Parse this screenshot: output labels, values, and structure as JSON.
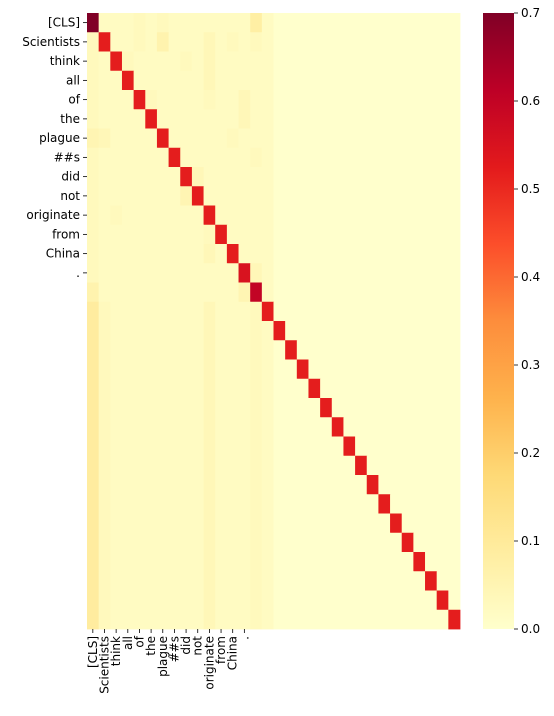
{
  "chart_data": {
    "type": "heatmap",
    "title": "",
    "xlabel": "",
    "ylabel": "",
    "n_rows": 32,
    "n_cols": 32,
    "tokens": [
      "[CLS]",
      "Scientists",
      "think",
      "all",
      "of",
      "the",
      "plague",
      "##s",
      "did",
      "not",
      "originate",
      "from",
      "China",
      "."
    ],
    "x_tick_labels": [
      "[CLS]",
      "Scientists",
      "think",
      "all",
      "of",
      "the",
      "plague",
      "##s",
      "did",
      "not",
      "originate",
      "from",
      "China",
      "."
    ],
    "y_tick_labels": [
      "[CLS]",
      "Scientists",
      "think",
      "all",
      "of",
      "the",
      "plague",
      "##s",
      "did",
      "not",
      "originate",
      "from",
      "China",
      "."
    ],
    "colorbar": {
      "vmin": 0.0,
      "vmax": 0.7,
      "ticks": [
        0.0,
        0.1,
        0.2,
        0.3,
        0.4,
        0.5,
        0.6,
        0.7
      ],
      "tick_labels": [
        "0.0",
        "0.1",
        "0.2",
        "0.3",
        "0.4",
        "0.5",
        "0.6",
        "0.7"
      ],
      "colormap": "YlOrRd",
      "stops": [
        "#ffffcc",
        "#ffeda0",
        "#fed976",
        "#feb24c",
        "#fd8d3c",
        "#fc4e2a",
        "#e31a1c",
        "#bd0026",
        "#800026"
      ]
    },
    "values": [
      [
        0.7,
        0.02,
        0.02,
        0.02,
        0.03,
        0.02,
        0.03,
        0.02,
        0.02,
        0.02,
        0.02,
        0.02,
        0.02,
        0.02,
        0.08,
        0.02,
        0.0,
        0.0,
        0.0,
        0.0,
        0.0,
        0.0,
        0.0,
        0.0,
        0.0,
        0.0,
        0.0,
        0.0,
        0.0,
        0.0,
        0.0,
        0.0
      ],
      [
        0.03,
        0.52,
        0.02,
        0.02,
        0.03,
        0.02,
        0.06,
        0.02,
        0.02,
        0.02,
        0.04,
        0.02,
        0.03,
        0.02,
        0.03,
        0.02,
        0.0,
        0.0,
        0.0,
        0.0,
        0.0,
        0.0,
        0.0,
        0.0,
        0.0,
        0.0,
        0.0,
        0.0,
        0.0,
        0.0,
        0.0,
        0.0
      ],
      [
        0.03,
        0.02,
        0.52,
        0.03,
        0.02,
        0.02,
        0.02,
        0.02,
        0.03,
        0.02,
        0.04,
        0.02,
        0.02,
        0.02,
        0.02,
        0.02,
        0.0,
        0.0,
        0.0,
        0.0,
        0.0,
        0.0,
        0.0,
        0.0,
        0.0,
        0.0,
        0.0,
        0.0,
        0.0,
        0.0,
        0.0,
        0.0
      ],
      [
        0.03,
        0.02,
        0.02,
        0.52,
        0.02,
        0.02,
        0.02,
        0.02,
        0.02,
        0.02,
        0.04,
        0.02,
        0.02,
        0.02,
        0.02,
        0.02,
        0.0,
        0.0,
        0.0,
        0.0,
        0.0,
        0.0,
        0.0,
        0.0,
        0.0,
        0.0,
        0.0,
        0.0,
        0.0,
        0.0,
        0.0,
        0.0
      ],
      [
        0.03,
        0.02,
        0.02,
        0.02,
        0.52,
        0.03,
        0.02,
        0.02,
        0.02,
        0.02,
        0.03,
        0.02,
        0.02,
        0.04,
        0.02,
        0.02,
        0.0,
        0.0,
        0.0,
        0.0,
        0.0,
        0.0,
        0.0,
        0.0,
        0.0,
        0.0,
        0.0,
        0.0,
        0.0,
        0.0,
        0.0,
        0.0
      ],
      [
        0.03,
        0.02,
        0.02,
        0.02,
        0.02,
        0.52,
        0.02,
        0.02,
        0.02,
        0.02,
        0.02,
        0.02,
        0.02,
        0.04,
        0.02,
        0.02,
        0.0,
        0.0,
        0.0,
        0.0,
        0.0,
        0.0,
        0.0,
        0.0,
        0.0,
        0.0,
        0.0,
        0.0,
        0.0,
        0.0,
        0.0,
        0.0
      ],
      [
        0.05,
        0.04,
        0.02,
        0.02,
        0.02,
        0.02,
        0.52,
        0.02,
        0.02,
        0.02,
        0.02,
        0.02,
        0.03,
        0.02,
        0.02,
        0.02,
        0.0,
        0.0,
        0.0,
        0.0,
        0.0,
        0.0,
        0.0,
        0.0,
        0.0,
        0.0,
        0.0,
        0.0,
        0.0,
        0.0,
        0.0,
        0.0
      ],
      [
        0.03,
        0.02,
        0.02,
        0.02,
        0.02,
        0.02,
        0.02,
        0.52,
        0.02,
        0.02,
        0.02,
        0.02,
        0.02,
        0.02,
        0.03,
        0.02,
        0.0,
        0.0,
        0.0,
        0.0,
        0.0,
        0.0,
        0.0,
        0.0,
        0.0,
        0.0,
        0.0,
        0.0,
        0.0,
        0.0,
        0.0,
        0.0
      ],
      [
        0.03,
        0.02,
        0.02,
        0.02,
        0.02,
        0.02,
        0.02,
        0.02,
        0.52,
        0.04,
        0.02,
        0.02,
        0.02,
        0.02,
        0.02,
        0.02,
        0.0,
        0.0,
        0.0,
        0.0,
        0.0,
        0.0,
        0.0,
        0.0,
        0.0,
        0.0,
        0.0,
        0.0,
        0.0,
        0.0,
        0.0,
        0.0
      ],
      [
        0.03,
        0.02,
        0.02,
        0.02,
        0.02,
        0.02,
        0.02,
        0.02,
        0.05,
        0.52,
        0.02,
        0.02,
        0.02,
        0.02,
        0.02,
        0.02,
        0.0,
        0.0,
        0.0,
        0.0,
        0.0,
        0.0,
        0.0,
        0.0,
        0.0,
        0.0,
        0.0,
        0.0,
        0.0,
        0.0,
        0.0,
        0.0
      ],
      [
        0.03,
        0.02,
        0.03,
        0.02,
        0.02,
        0.02,
        0.02,
        0.02,
        0.02,
        0.02,
        0.52,
        0.02,
        0.02,
        0.02,
        0.02,
        0.02,
        0.0,
        0.0,
        0.0,
        0.0,
        0.0,
        0.0,
        0.0,
        0.0,
        0.0,
        0.0,
        0.0,
        0.0,
        0.0,
        0.0,
        0.0,
        0.0
      ],
      [
        0.03,
        0.02,
        0.02,
        0.02,
        0.02,
        0.02,
        0.02,
        0.02,
        0.02,
        0.02,
        0.03,
        0.52,
        0.02,
        0.02,
        0.02,
        0.02,
        0.0,
        0.0,
        0.0,
        0.0,
        0.0,
        0.0,
        0.0,
        0.0,
        0.0,
        0.0,
        0.0,
        0.0,
        0.0,
        0.0,
        0.0,
        0.0
      ],
      [
        0.03,
        0.02,
        0.02,
        0.02,
        0.02,
        0.02,
        0.02,
        0.02,
        0.02,
        0.02,
        0.04,
        0.02,
        0.52,
        0.02,
        0.02,
        0.02,
        0.0,
        0.0,
        0.0,
        0.0,
        0.0,
        0.0,
        0.0,
        0.0,
        0.0,
        0.0,
        0.0,
        0.0,
        0.0,
        0.0,
        0.0,
        0.0
      ],
      [
        0.03,
        0.02,
        0.02,
        0.02,
        0.02,
        0.02,
        0.02,
        0.02,
        0.02,
        0.02,
        0.02,
        0.02,
        0.02,
        0.55,
        0.04,
        0.02,
        0.0,
        0.0,
        0.0,
        0.0,
        0.0,
        0.0,
        0.0,
        0.0,
        0.0,
        0.0,
        0.0,
        0.0,
        0.0,
        0.0,
        0.0,
        0.0
      ],
      [
        0.06,
        0.02,
        0.02,
        0.02,
        0.02,
        0.02,
        0.02,
        0.02,
        0.02,
        0.02,
        0.02,
        0.02,
        0.02,
        0.05,
        0.6,
        0.02,
        0.0,
        0.0,
        0.0,
        0.0,
        0.0,
        0.0,
        0.0,
        0.0,
        0.0,
        0.0,
        0.0,
        0.0,
        0.0,
        0.0,
        0.0,
        0.0
      ],
      [
        0.09,
        0.03,
        0.02,
        0.02,
        0.02,
        0.02,
        0.02,
        0.02,
        0.02,
        0.02,
        0.04,
        0.02,
        0.02,
        0.02,
        0.03,
        0.52,
        0.0,
        0.0,
        0.0,
        0.0,
        0.0,
        0.0,
        0.0,
        0.0,
        0.0,
        0.0,
        0.0,
        0.0,
        0.0,
        0.0,
        0.0,
        0.0
      ],
      [
        0.09,
        0.03,
        0.02,
        0.02,
        0.02,
        0.02,
        0.02,
        0.02,
        0.02,
        0.02,
        0.04,
        0.02,
        0.02,
        0.02,
        0.03,
        0.02,
        0.52,
        0.0,
        0.0,
        0.0,
        0.0,
        0.0,
        0.0,
        0.0,
        0.0,
        0.0,
        0.0,
        0.0,
        0.0,
        0.0,
        0.0,
        0.0
      ],
      [
        0.09,
        0.03,
        0.02,
        0.02,
        0.02,
        0.02,
        0.02,
        0.02,
        0.02,
        0.02,
        0.04,
        0.02,
        0.02,
        0.02,
        0.03,
        0.02,
        0.0,
        0.52,
        0.0,
        0.0,
        0.0,
        0.0,
        0.0,
        0.0,
        0.0,
        0.0,
        0.0,
        0.0,
        0.0,
        0.0,
        0.0,
        0.0
      ],
      [
        0.09,
        0.03,
        0.02,
        0.02,
        0.02,
        0.02,
        0.02,
        0.02,
        0.02,
        0.02,
        0.04,
        0.02,
        0.02,
        0.02,
        0.03,
        0.02,
        0.0,
        0.0,
        0.52,
        0.0,
        0.0,
        0.0,
        0.0,
        0.0,
        0.0,
        0.0,
        0.0,
        0.0,
        0.0,
        0.0,
        0.0,
        0.0
      ],
      [
        0.09,
        0.03,
        0.02,
        0.02,
        0.02,
        0.02,
        0.02,
        0.02,
        0.02,
        0.02,
        0.04,
        0.02,
        0.02,
        0.02,
        0.03,
        0.02,
        0.0,
        0.0,
        0.0,
        0.52,
        0.0,
        0.0,
        0.0,
        0.0,
        0.0,
        0.0,
        0.0,
        0.0,
        0.0,
        0.0,
        0.0,
        0.0
      ],
      [
        0.09,
        0.03,
        0.02,
        0.02,
        0.02,
        0.02,
        0.02,
        0.02,
        0.02,
        0.02,
        0.04,
        0.02,
        0.02,
        0.02,
        0.03,
        0.02,
        0.0,
        0.0,
        0.0,
        0.0,
        0.52,
        0.0,
        0.0,
        0.0,
        0.0,
        0.0,
        0.0,
        0.0,
        0.0,
        0.0,
        0.0,
        0.0
      ],
      [
        0.09,
        0.03,
        0.02,
        0.02,
        0.02,
        0.02,
        0.02,
        0.02,
        0.02,
        0.02,
        0.04,
        0.02,
        0.02,
        0.02,
        0.03,
        0.02,
        0.0,
        0.0,
        0.0,
        0.0,
        0.0,
        0.52,
        0.0,
        0.0,
        0.0,
        0.0,
        0.0,
        0.0,
        0.0,
        0.0,
        0.0,
        0.0
      ],
      [
        0.09,
        0.03,
        0.02,
        0.02,
        0.02,
        0.02,
        0.02,
        0.02,
        0.02,
        0.02,
        0.04,
        0.02,
        0.02,
        0.02,
        0.03,
        0.02,
        0.0,
        0.0,
        0.0,
        0.0,
        0.0,
        0.0,
        0.52,
        0.0,
        0.0,
        0.0,
        0.0,
        0.0,
        0.0,
        0.0,
        0.0,
        0.0
      ],
      [
        0.09,
        0.03,
        0.02,
        0.02,
        0.02,
        0.02,
        0.02,
        0.02,
        0.02,
        0.02,
        0.04,
        0.02,
        0.02,
        0.02,
        0.03,
        0.02,
        0.0,
        0.0,
        0.0,
        0.0,
        0.0,
        0.0,
        0.0,
        0.52,
        0.0,
        0.0,
        0.0,
        0.0,
        0.0,
        0.0,
        0.0,
        0.0
      ],
      [
        0.09,
        0.03,
        0.02,
        0.02,
        0.02,
        0.02,
        0.02,
        0.02,
        0.02,
        0.02,
        0.04,
        0.02,
        0.02,
        0.02,
        0.03,
        0.02,
        0.0,
        0.0,
        0.0,
        0.0,
        0.0,
        0.0,
        0.0,
        0.0,
        0.52,
        0.0,
        0.0,
        0.0,
        0.0,
        0.0,
        0.0,
        0.0
      ],
      [
        0.09,
        0.03,
        0.02,
        0.02,
        0.02,
        0.02,
        0.02,
        0.02,
        0.02,
        0.02,
        0.04,
        0.02,
        0.02,
        0.02,
        0.03,
        0.02,
        0.0,
        0.0,
        0.0,
        0.0,
        0.0,
        0.0,
        0.0,
        0.0,
        0.0,
        0.52,
        0.0,
        0.0,
        0.0,
        0.0,
        0.0,
        0.0
      ],
      [
        0.09,
        0.03,
        0.02,
        0.02,
        0.02,
        0.02,
        0.02,
        0.02,
        0.02,
        0.02,
        0.04,
        0.02,
        0.02,
        0.02,
        0.03,
        0.02,
        0.0,
        0.0,
        0.0,
        0.0,
        0.0,
        0.0,
        0.0,
        0.0,
        0.0,
        0.0,
        0.52,
        0.0,
        0.0,
        0.0,
        0.0,
        0.0
      ],
      [
        0.09,
        0.03,
        0.02,
        0.02,
        0.02,
        0.02,
        0.02,
        0.02,
        0.02,
        0.02,
        0.04,
        0.02,
        0.02,
        0.02,
        0.03,
        0.02,
        0.0,
        0.0,
        0.0,
        0.0,
        0.0,
        0.0,
        0.0,
        0.0,
        0.0,
        0.0,
        0.0,
        0.52,
        0.0,
        0.0,
        0.0,
        0.0
      ],
      [
        0.09,
        0.03,
        0.02,
        0.02,
        0.02,
        0.02,
        0.02,
        0.02,
        0.02,
        0.02,
        0.04,
        0.02,
        0.02,
        0.02,
        0.03,
        0.02,
        0.0,
        0.0,
        0.0,
        0.0,
        0.0,
        0.0,
        0.0,
        0.0,
        0.0,
        0.0,
        0.0,
        0.0,
        0.52,
        0.0,
        0.0,
        0.0
      ],
      [
        0.09,
        0.03,
        0.02,
        0.02,
        0.02,
        0.02,
        0.02,
        0.02,
        0.02,
        0.02,
        0.04,
        0.02,
        0.02,
        0.02,
        0.03,
        0.02,
        0.0,
        0.0,
        0.0,
        0.0,
        0.0,
        0.0,
        0.0,
        0.0,
        0.0,
        0.0,
        0.0,
        0.0,
        0.0,
        0.52,
        0.0,
        0.0
      ],
      [
        0.09,
        0.03,
        0.02,
        0.02,
        0.02,
        0.02,
        0.02,
        0.02,
        0.02,
        0.02,
        0.04,
        0.02,
        0.02,
        0.02,
        0.03,
        0.02,
        0.0,
        0.0,
        0.0,
        0.0,
        0.0,
        0.0,
        0.0,
        0.0,
        0.0,
        0.0,
        0.0,
        0.0,
        0.0,
        0.0,
        0.52,
        0.0
      ],
      [
        0.09,
        0.03,
        0.02,
        0.02,
        0.02,
        0.02,
        0.02,
        0.02,
        0.02,
        0.02,
        0.04,
        0.02,
        0.02,
        0.02,
        0.03,
        0.02,
        0.0,
        0.0,
        0.0,
        0.0,
        0.0,
        0.0,
        0.0,
        0.0,
        0.0,
        0.0,
        0.0,
        0.0,
        0.0,
        0.0,
        0.0,
        0.52
      ]
    ]
  }
}
